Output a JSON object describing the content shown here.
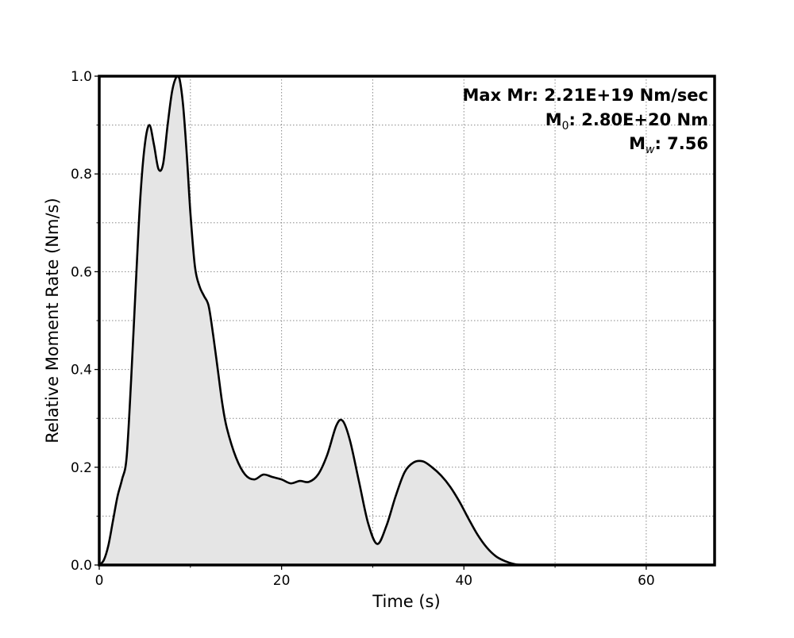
{
  "chart_data": {
    "type": "area",
    "title": "",
    "xlabel": "Time (s)",
    "ylabel": "Relative Moment Rate (Nm/s)",
    "xlim": [
      0,
      67.5
    ],
    "ylim": [
      0,
      1.0
    ],
    "x_major_ticks": [
      0,
      20,
      40,
      60
    ],
    "x_minor_ticks": [
      10,
      30,
      50
    ],
    "y_major_ticks": [
      0.0,
      0.2,
      0.4,
      0.6,
      0.8,
      1.0
    ],
    "y_minor_ticks": [
      0.1,
      0.3,
      0.5,
      0.7,
      0.9
    ],
    "x_tick_labels": [
      "0",
      "20",
      "40",
      "60"
    ],
    "y_tick_labels": [
      "0.0",
      "0.2",
      "0.4",
      "0.6",
      "0.8",
      "1.0"
    ],
    "grid": true,
    "fill_color": "#e5e5e5",
    "line_color": "#000000",
    "annotations": {
      "max_mr": "Max Mr: 2.21E+19 Nm/sec",
      "m0_prefix": "M",
      "m0_sub": "0",
      "m0_rest": ": 2.80E+20 Nm",
      "mw_prefix": "M",
      "mw_sub": "w",
      "mw_rest": ": 7.56"
    },
    "series": [
      {
        "x": [
          0,
          0.5,
          1,
          1.5,
          2,
          2.5,
          3,
          3.5,
          4,
          4.5,
          5,
          5.5,
          6,
          6.5,
          7,
          7.5,
          8,
          8.5,
          8.8,
          9.2,
          9.6,
          10,
          10.5,
          11,
          11.5,
          12,
          12.5,
          13,
          13.5,
          14,
          15,
          16,
          17,
          18,
          19,
          20,
          21,
          22,
          23,
          24,
          25,
          26,
          26.7,
          27.5,
          28.5,
          29.5,
          30.5,
          31.5,
          32.5,
          33.5,
          34.5,
          35.5,
          36.5,
          37.5,
          38.5,
          39.5,
          40.5,
          41.5,
          42.5,
          43.5,
          44.5,
          45.5,
          46.5,
          50,
          67.5
        ],
        "y": [
          0.0,
          0.01,
          0.04,
          0.09,
          0.14,
          0.175,
          0.22,
          0.38,
          0.57,
          0.75,
          0.86,
          0.9,
          0.86,
          0.81,
          0.82,
          0.9,
          0.97,
          1.0,
          0.995,
          0.94,
          0.84,
          0.72,
          0.61,
          0.57,
          0.55,
          0.53,
          0.47,
          0.4,
          0.33,
          0.28,
          0.22,
          0.185,
          0.175,
          0.185,
          0.18,
          0.175,
          0.167,
          0.172,
          0.17,
          0.185,
          0.225,
          0.285,
          0.295,
          0.255,
          0.17,
          0.085,
          0.043,
          0.08,
          0.14,
          0.19,
          0.21,
          0.212,
          0.2,
          0.183,
          0.16,
          0.13,
          0.095,
          0.062,
          0.036,
          0.018,
          0.008,
          0.002,
          0.0,
          0.0,
          0.0
        ]
      }
    ]
  }
}
